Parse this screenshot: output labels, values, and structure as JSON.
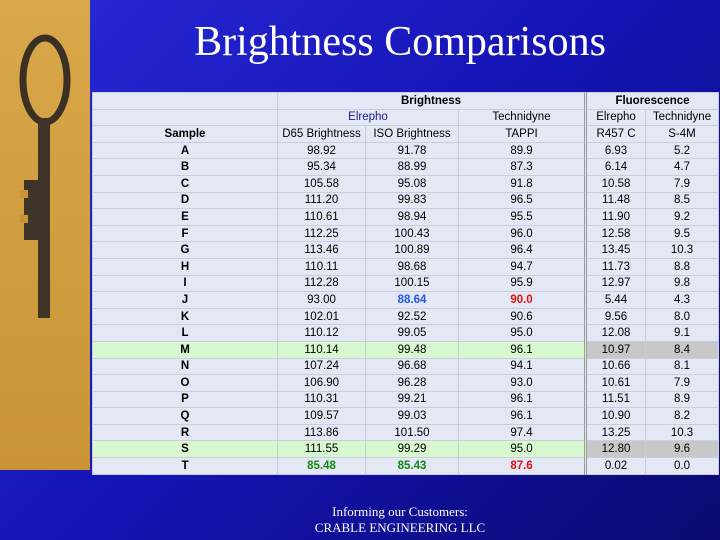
{
  "title": "Brightness Comparisons",
  "table": {
    "group_headers": [
      "Brightness",
      "Fluorescence"
    ],
    "sub_headers": [
      "Elrepho",
      "Technidyne",
      "Elrepho",
      "Technidyne"
    ],
    "columns": [
      "Sample",
      "D65 Brightness",
      "ISO Brightness",
      "TAPPI",
      "R457 C",
      "S-4M"
    ],
    "rows": [
      [
        "A",
        "98.92",
        "91.78",
        "89.9",
        "6.93",
        "5.2"
      ],
      [
        "B",
        "95.34",
        "88.99",
        "87.3",
        "6.14",
        "4.7"
      ],
      [
        "C",
        "105.58",
        "95.08",
        "91.8",
        "10.58",
        "7.9"
      ],
      [
        "D",
        "111.20",
        "99.83",
        "96.5",
        "11.48",
        "8.5"
      ],
      [
        "E",
        "110.61",
        "98.94",
        "95.5",
        "11.90",
        "9.2"
      ],
      [
        "F",
        "112.25",
        "100.43",
        "96.0",
        "12.58",
        "9.5"
      ],
      [
        "G",
        "113.46",
        "100.89",
        "96.4",
        "13.45",
        "10.3"
      ],
      [
        "H",
        "110.11",
        "98.68",
        "94.7",
        "11.73",
        "8.8"
      ],
      [
        "I",
        "112.28",
        "100.15",
        "95.9",
        "12.97",
        "9.8"
      ],
      [
        "J",
        "93.00",
        "88.64",
        "90.0",
        "5.44",
        "4.3"
      ],
      [
        "K",
        "102.01",
        "92.52",
        "90.6",
        "9.56",
        "8.0"
      ],
      [
        "L",
        "110.12",
        "99.05",
        "95.0",
        "12.08",
        "9.1"
      ],
      [
        "M",
        "110.14",
        "99.48",
        "96.1",
        "10.97",
        "8.4"
      ],
      [
        "N",
        "107.24",
        "96.68",
        "94.1",
        "10.66",
        "8.1"
      ],
      [
        "O",
        "106.90",
        "96.28",
        "93.0",
        "10.61",
        "7.9"
      ],
      [
        "P",
        "110.31",
        "99.21",
        "96.1",
        "11.51",
        "8.9"
      ],
      [
        "Q",
        "109.57",
        "99.03",
        "96.1",
        "10.90",
        "8.2"
      ],
      [
        "R",
        "113.86",
        "101.50",
        "97.4",
        "13.25",
        "10.3"
      ],
      [
        "S",
        "111.55",
        "99.29",
        "95.0",
        "12.80",
        "9.6"
      ],
      [
        "T",
        "85.48",
        "85.43",
        "87.6",
        "0.02",
        "0.0"
      ]
    ]
  },
  "footer": [
    "Informing our Customers:",
    "CRABLE ENGINEERING LLC"
  ]
}
